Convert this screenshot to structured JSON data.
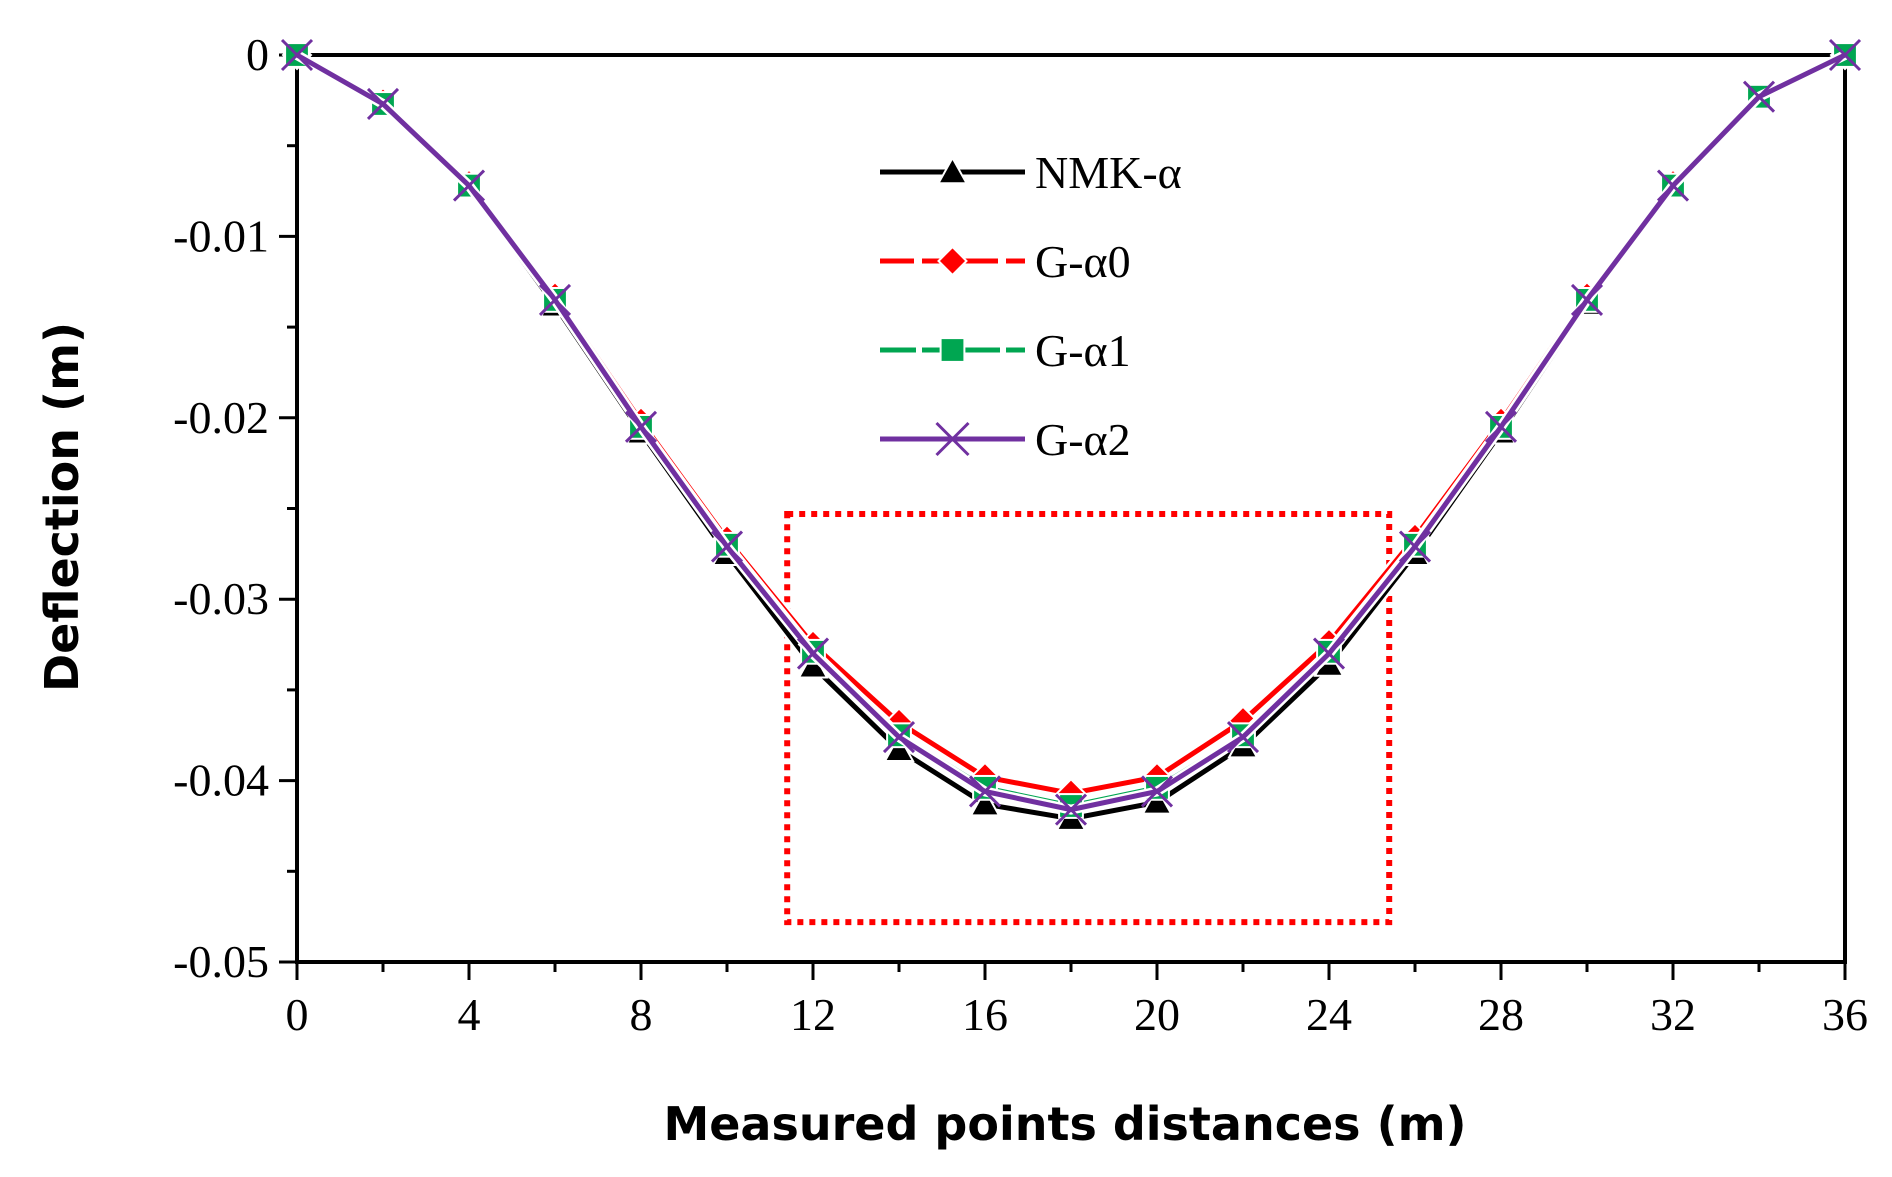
{
  "chart_data": {
    "type": "line",
    "title": "",
    "xlabel": "Measured points distances (m)",
    "ylabel": "Deflection (m)",
    "xlim": [
      0,
      36
    ],
    "ylim": [
      -0.05,
      0
    ],
    "xticks": [
      0,
      4,
      8,
      12,
      16,
      20,
      24,
      28,
      32,
      36
    ],
    "xtick_labels": [
      "0",
      "4",
      "8",
      "12",
      "16",
      "20",
      "24",
      "28",
      "32",
      "36"
    ],
    "yticks": [
      0,
      -0.01,
      -0.02,
      -0.03,
      -0.04,
      -0.05
    ],
    "ytick_labels": [
      "0",
      "-0.01",
      "-0.02",
      "-0.03",
      "-0.04",
      "-0.05"
    ],
    "grid": false,
    "legend_position": "top-center",
    "x": [
      0,
      2,
      4,
      6,
      8,
      10,
      12,
      14,
      16,
      18,
      20,
      22,
      24,
      26,
      28,
      30,
      32,
      34,
      36
    ],
    "series": [
      {
        "name": "NMK-α",
        "color": "#000000",
        "marker": "triangle",
        "values": [
          0,
          -0.0027,
          -0.0073,
          -0.0138,
          -0.0208,
          -0.0275,
          -0.0337,
          -0.0383,
          -0.0413,
          -0.0421,
          -0.0412,
          -0.0381,
          -0.0336,
          -0.0275,
          -0.0208,
          -0.0137,
          -0.0073,
          -0.0024,
          0
        ]
      },
      {
        "name": "G-α0",
        "color": "#ff0000",
        "marker": "diamond",
        "values": [
          0,
          -0.0026,
          -0.0071,
          -0.0133,
          -0.0202,
          -0.0267,
          -0.0325,
          -0.0368,
          -0.0398,
          -0.0407,
          -0.0398,
          -0.0367,
          -0.0324,
          -0.0266,
          -0.0202,
          -0.0133,
          -0.0071,
          -0.0023,
          0
        ]
      },
      {
        "name": "G-α1",
        "color": "#00a651",
        "marker": "square",
        "values": [
          0,
          -0.0027,
          -0.0072,
          -0.0135,
          -0.0205,
          -0.027,
          -0.0329,
          -0.0375,
          -0.0404,
          -0.0414,
          -0.0404,
          -0.0375,
          -0.0329,
          -0.027,
          -0.0205,
          -0.0135,
          -0.0072,
          -0.0023,
          0
        ]
      },
      {
        "name": "G-α2",
        "color": "#7030a0",
        "marker": "x",
        "values": [
          0,
          -0.0027,
          -0.0072,
          -0.0135,
          -0.0205,
          -0.0271,
          -0.033,
          -0.0376,
          -0.0406,
          -0.0416,
          -0.0406,
          -0.0376,
          -0.033,
          -0.0271,
          -0.0205,
          -0.0135,
          -0.0072,
          -0.0023,
          0
        ]
      }
    ],
    "annotations": [
      {
        "type": "dotted-rectangle",
        "color": "#ff0000",
        "x_range": [
          11.4,
          25.4
        ],
        "y_range": [
          -0.0478,
          -0.0253
        ]
      }
    ]
  }
}
